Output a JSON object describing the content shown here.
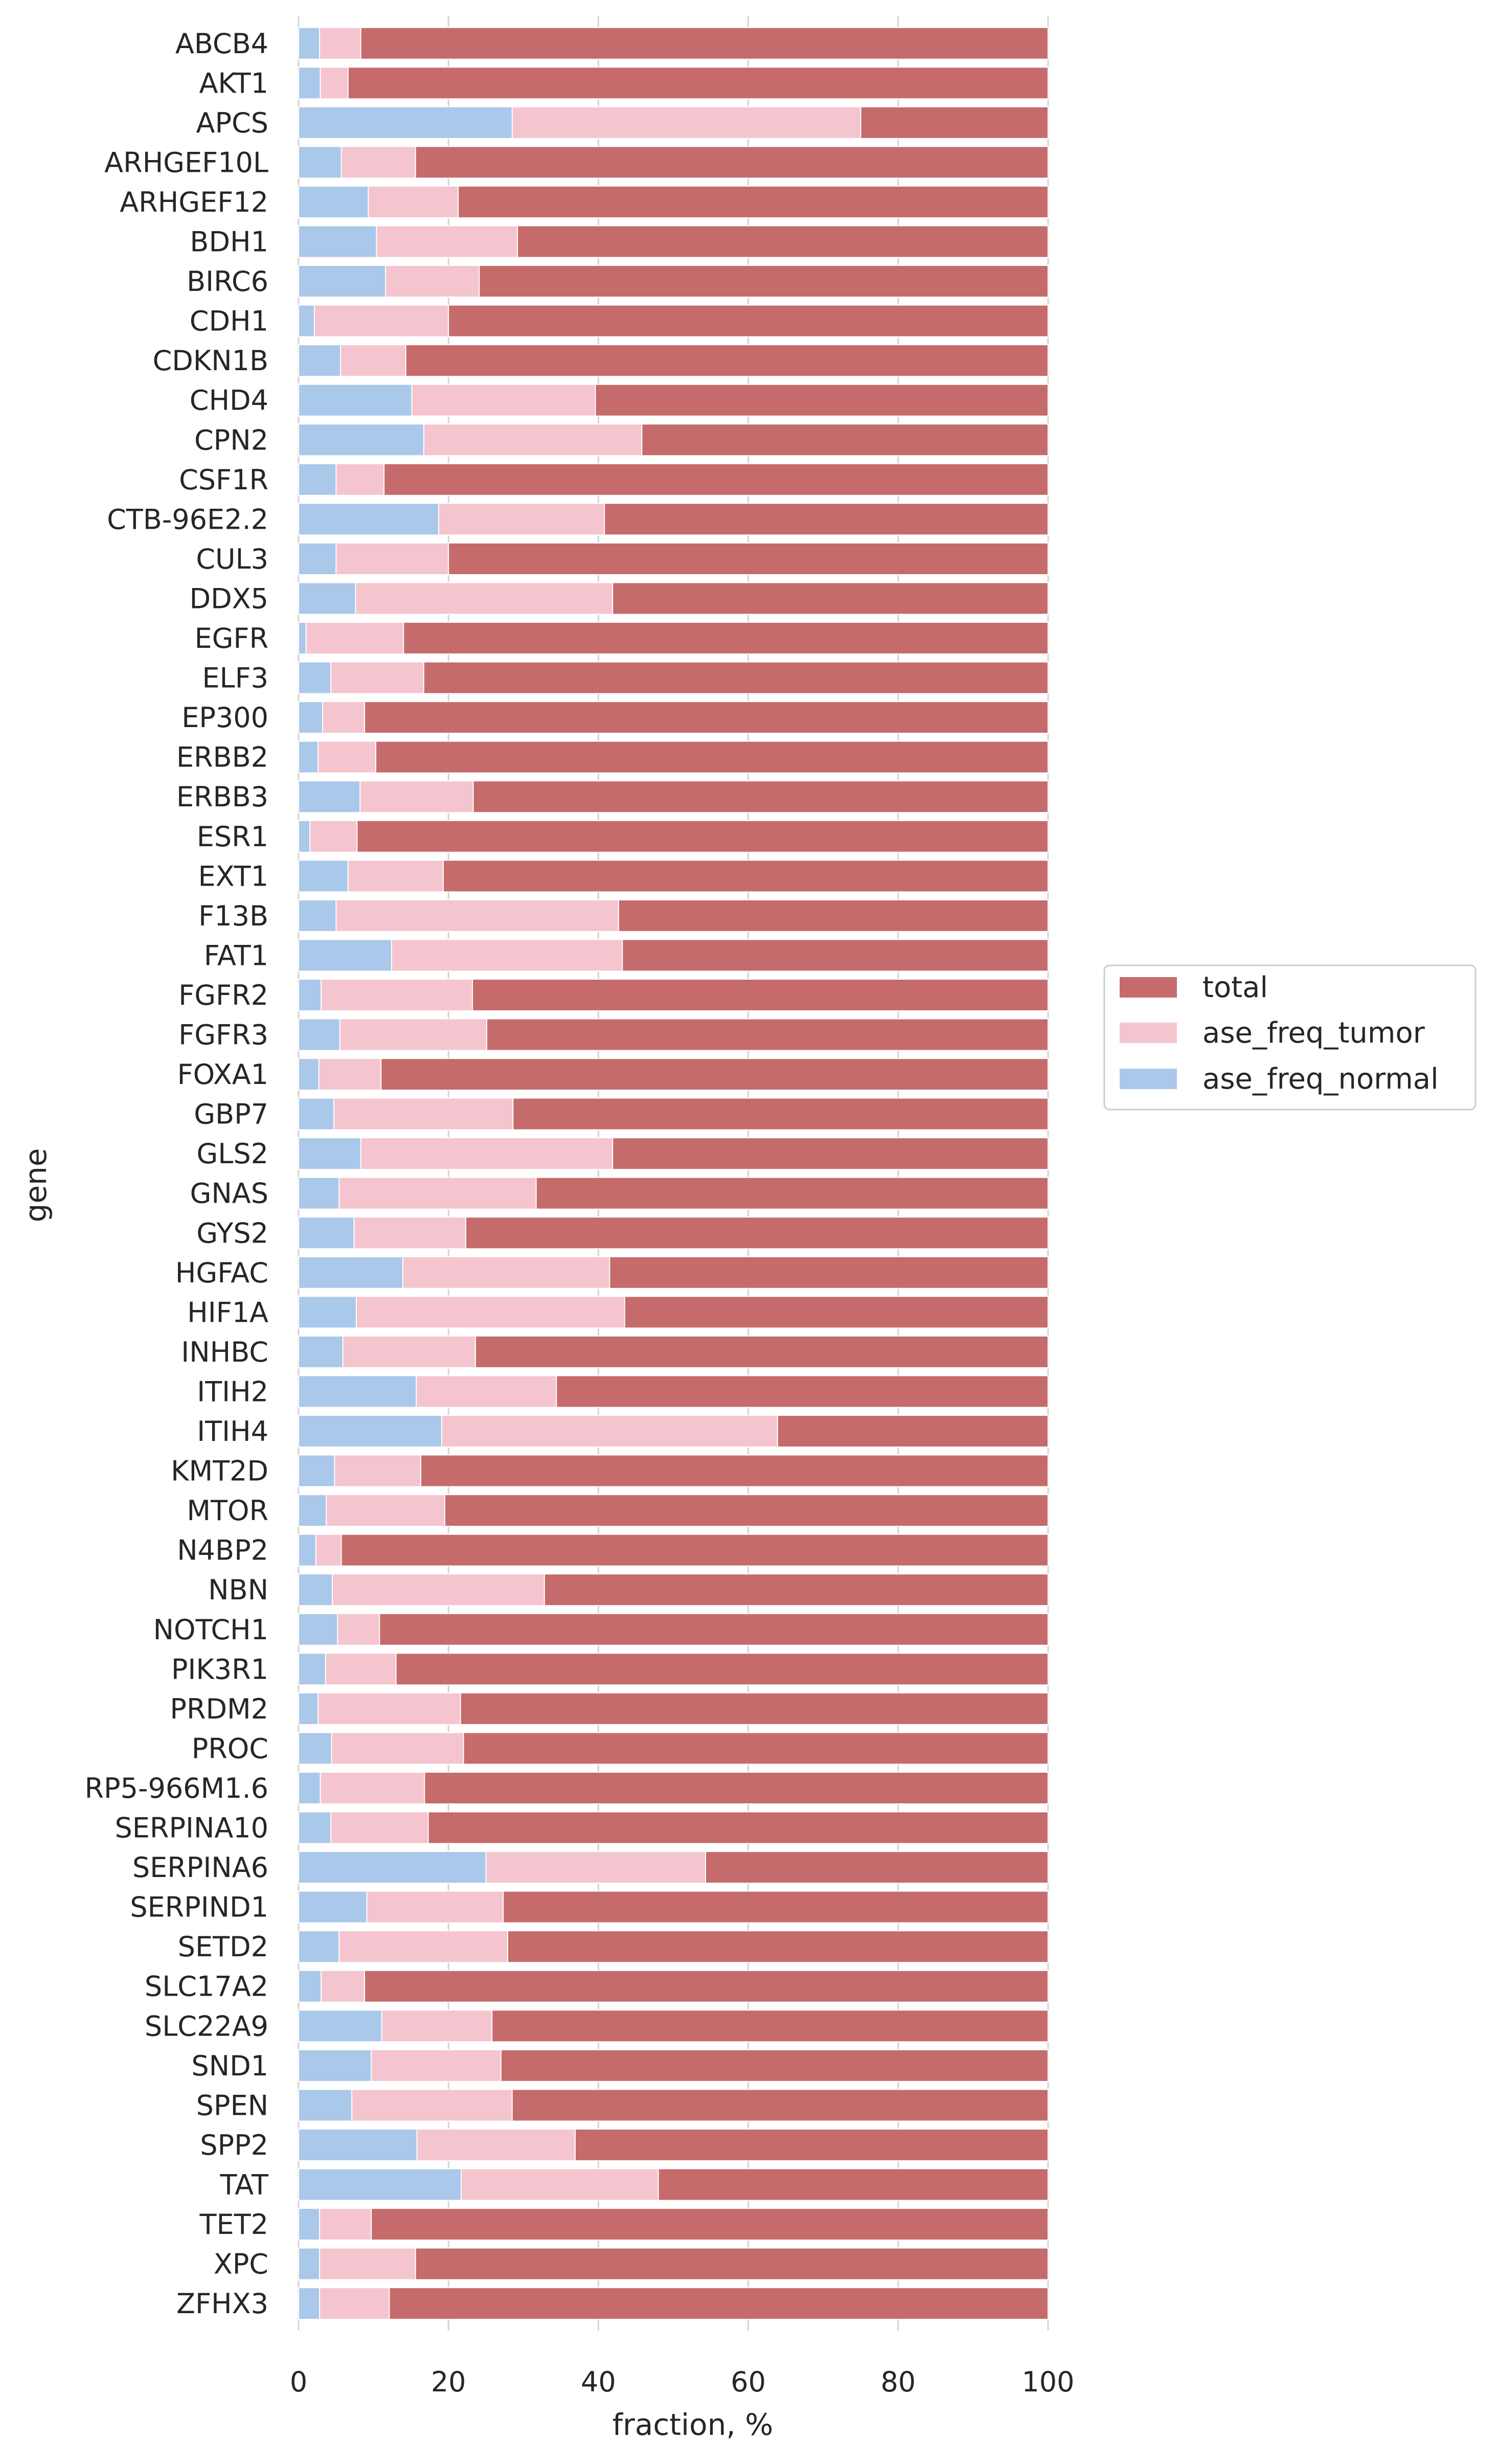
{
  "colors": {
    "total": "#c66b6b",
    "ase_freq_tumor": "#f5c5cf",
    "ase_freq_normal": "#aac8ea",
    "grid": "#d3d3d3",
    "legend_border": "#cccccc"
  },
  "chart_data": {
    "type": "bar",
    "orientation": "horizontal",
    "stacking": "overlaid",
    "title": "",
    "xlabel": "fraction, %",
    "ylabel": "gene",
    "xlim": [
      0,
      100
    ],
    "xticks": [
      0,
      20,
      40,
      60,
      80,
      100
    ],
    "grid": true,
    "legend_position": "center-right",
    "legend": [
      "total",
      "ase_freq_tumor",
      "ase_freq_normal"
    ],
    "categories": [
      "ABCB4",
      "AKT1",
      "APCS",
      "ARHGEF10L",
      "ARHGEF12",
      "BDH1",
      "BIRC6",
      "CDH1",
      "CDKN1B",
      "CHD4",
      "CPN2",
      "CSF1R",
      "CTB-96E2.2",
      "CUL3",
      "DDX5",
      "EGFR",
      "ELF3",
      "EP300",
      "ERBB2",
      "ERBB3",
      "ESR1",
      "EXT1",
      "F13B",
      "FAT1",
      "FGFR2",
      "FGFR3",
      "FOXA1",
      "GBP7",
      "GLS2",
      "GNAS",
      "GYS2",
      "HGFAC",
      "HIF1A",
      "INHBC",
      "ITIH2",
      "ITIH4",
      "KMT2D",
      "MTOR",
      "N4BP2",
      "NBN",
      "NOTCH1",
      "PIK3R1",
      "PRDM2",
      "PROC",
      "RP5-966M1.6",
      "SERPINA10",
      "SERPINA6",
      "SERPIND1",
      "SETD2",
      "SLC17A2",
      "SLC22A9",
      "SND1",
      "SPEN",
      "SPP2",
      "TAT",
      "TET2",
      "XPC",
      "ZFHX3"
    ],
    "series": [
      {
        "name": "total",
        "values": [
          100,
          100,
          100,
          100,
          100,
          100,
          100,
          100,
          100,
          100,
          100,
          100,
          100,
          100,
          100,
          100,
          100,
          100,
          100,
          100,
          100,
          100,
          100,
          100,
          100,
          100,
          100,
          100,
          100,
          100,
          100,
          100,
          100,
          100,
          100,
          100,
          100,
          100,
          100,
          100,
          100,
          100,
          100,
          100,
          100,
          100,
          100,
          100,
          100,
          100,
          100,
          100,
          100,
          100,
          100,
          100,
          100,
          100
        ]
      },
      {
        "name": "ase_freq_tumor",
        "values": [
          8.3,
          6.6,
          75,
          15.6,
          21.3,
          29.2,
          24.1,
          20,
          14.3,
          39.6,
          45.8,
          11.4,
          40.8,
          20,
          41.9,
          14,
          16.7,
          8.8,
          10.3,
          23.3,
          7.8,
          19.3,
          42.7,
          43.2,
          23.2,
          25.1,
          11,
          28.6,
          41.9,
          31.7,
          22.3,
          41.5,
          43.5,
          23.6,
          34.4,
          63.9,
          16.3,
          19.5,
          5.7,
          32.8,
          10.8,
          13,
          21.6,
          22,
          16.8,
          17.3,
          54.3,
          27.3,
          27.9,
          8.8,
          25.8,
          27,
          28.5,
          36.9,
          48,
          9.7,
          15.6,
          12.1
        ]
      },
      {
        "name": "ase_freq_normal",
        "values": [
          2.8,
          2.9,
          28.5,
          5.7,
          9.3,
          10.4,
          11.6,
          2.1,
          5.6,
          15.1,
          16.7,
          5,
          18.7,
          5,
          7.6,
          1,
          4.3,
          3.2,
          2.6,
          8.2,
          1.5,
          6.6,
          5,
          12.4,
          3,
          5.5,
          2.7,
          4.7,
          8.3,
          5.4,
          7.4,
          13.9,
          7.7,
          5.9,
          15.7,
          19.1,
          4.8,
          3.7,
          2.3,
          4.5,
          5.2,
          3.6,
          2.6,
          4.4,
          2.9,
          4.3,
          25,
          9.1,
          5.4,
          3,
          11.1,
          9.7,
          7.1,
          15.8,
          21.7,
          2.8,
          2.8,
          2.8
        ]
      }
    ]
  }
}
